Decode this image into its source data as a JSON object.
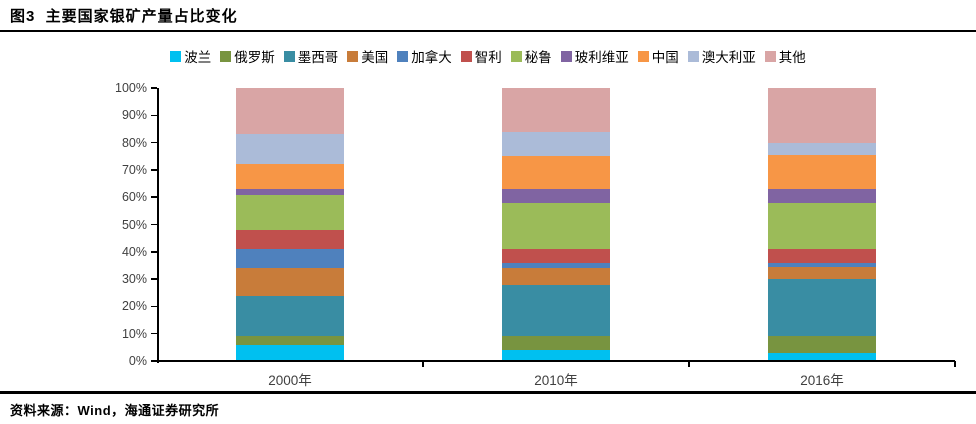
{
  "header": {
    "title": "图3  主要国家银矿产量占比变化"
  },
  "footer": {
    "source": "资料来源：Wind，海通证券研究所"
  },
  "chart_data": {
    "type": "bar",
    "stacked": true,
    "title": "主要国家银矿产量占比变化",
    "xlabel": "",
    "ylabel": "",
    "ylim": [
      0,
      100
    ],
    "grid": false,
    "legend_position": "top",
    "categories": [
      "2000年",
      "2010年",
      "2016年"
    ],
    "y_ticks": [
      "0%",
      "10%",
      "20%",
      "30%",
      "40%",
      "50%",
      "60%",
      "70%",
      "80%",
      "90%",
      "100%"
    ],
    "series": [
      {
        "name": "波兰",
        "color": "#00C0F0",
        "values": [
          6,
          4,
          3
        ]
      },
      {
        "name": "俄罗斯",
        "color": "#789440",
        "values": [
          3,
          5,
          6
        ]
      },
      {
        "name": "墨西哥",
        "color": "#398DA3",
        "values": [
          15,
          19,
          21
        ]
      },
      {
        "name": "美国",
        "color": "#C87C3A",
        "values": [
          10,
          6,
          4.5
        ]
      },
      {
        "name": "加拿大",
        "color": "#4F81BD",
        "values": [
          7,
          2,
          1.5
        ]
      },
      {
        "name": "智利",
        "color": "#C0504D",
        "values": [
          7,
          5,
          5
        ]
      },
      {
        "name": "秘鲁",
        "color": "#9BBB59",
        "values": [
          13,
          17,
          17
        ]
      },
      {
        "name": "玻利维亚",
        "color": "#8064A2",
        "values": [
          2,
          5,
          5
        ]
      },
      {
        "name": "中国",
        "color": "#F79646",
        "values": [
          9,
          12,
          12.5
        ]
      },
      {
        "name": "澳大利亚",
        "color": "#ABBBD8",
        "values": [
          11,
          9,
          4.5
        ]
      },
      {
        "name": "其他",
        "color": "#D9A5A5",
        "values": [
          17,
          16,
          20
        ]
      }
    ]
  }
}
